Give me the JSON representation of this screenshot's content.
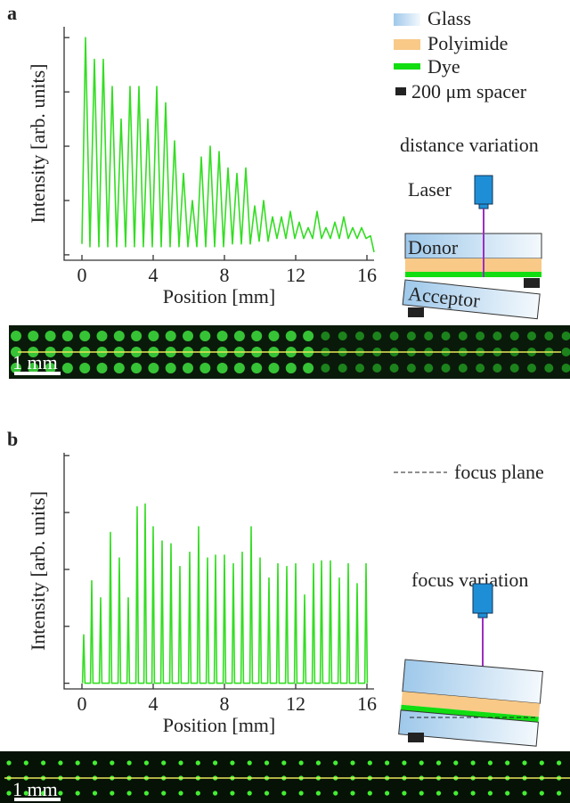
{
  "chart_data": [
    {
      "type": "line",
      "panel": "a",
      "xlabel": "Position [mm]",
      "ylabel": "Intensity [arb. units]",
      "color": "#33dd22",
      "x": [
        0,
        0.2,
        0.45,
        0.7,
        0.95,
        1.2,
        1.45,
        1.7,
        1.95,
        2.2,
        2.45,
        2.7,
        2.95,
        3.2,
        3.45,
        3.7,
        3.95,
        4.2,
        4.45,
        4.7,
        4.95,
        5.2,
        5.45,
        5.7,
        5.95,
        6.2,
        6.45,
        6.7,
        6.95,
        7.2,
        7.45,
        7.7,
        7.95,
        8.2,
        8.45,
        8.7,
        8.95,
        9.2,
        9.45,
        9.7,
        9.95,
        10.2,
        10.45,
        10.7,
        10.95,
        11.2,
        11.45,
        11.7,
        11.95,
        12.2,
        12.45,
        12.7,
        12.95,
        13.2,
        13.45,
        13.7,
        13.95,
        14.2,
        14.45,
        14.7,
        14.95,
        15.2,
        15.45,
        15.7,
        15.95,
        16.2,
        16.4
      ],
      "values": [
        0.2,
        4.0,
        0.15,
        3.6,
        0.15,
        3.6,
        0.15,
        3.1,
        0.15,
        2.5,
        0.15,
        3.1,
        0.15,
        3.1,
        0.15,
        2.5,
        0.15,
        3.1,
        0.15,
        2.8,
        0.15,
        2.1,
        0.15,
        1.5,
        0.15,
        1.0,
        0.15,
        1.8,
        0.15,
        2.0,
        0.15,
        1.9,
        0.15,
        1.6,
        0.2,
        1.5,
        0.2,
        1.6,
        0.2,
        0.9,
        0.25,
        1.0,
        0.25,
        0.7,
        0.3,
        0.7,
        0.3,
        0.8,
        0.3,
        0.6,
        0.3,
        0.5,
        0.3,
        0.8,
        0.3,
        0.5,
        0.3,
        0.6,
        0.3,
        0.7,
        0.3,
        0.5,
        0.3,
        0.5,
        0.3,
        0.35,
        0.05
      ],
      "xlim": [
        -1,
        16.4
      ],
      "xticks": [
        0,
        4,
        8,
        12,
        16
      ],
      "ylim": [
        -0.1,
        4.2
      ],
      "yticks": [
        0,
        1,
        2,
        3,
        4
      ],
      "ytick_labels": false
    },
    {
      "type": "line",
      "panel": "b",
      "xlabel": "Position [mm]",
      "ylabel": "Intensity [arb. units]",
      "color": "#33dd22",
      "x": [
        0.03,
        0.1,
        0.17,
        0.48,
        0.55,
        0.62,
        0.98,
        1.05,
        1.12,
        1.53,
        1.6,
        1.67,
        2.03,
        2.1,
        2.17,
        2.53,
        2.6,
        2.67,
        3.03,
        3.1,
        3.17,
        3.48,
        3.55,
        3.62,
        3.93,
        4.0,
        4.07,
        4.43,
        4.5,
        4.57,
        4.93,
        5.0,
        5.07,
        5.43,
        5.5,
        5.57,
        5.98,
        6.05,
        6.12,
        6.48,
        6.55,
        6.62,
        6.98,
        7.05,
        7.12,
        7.43,
        7.5,
        7.57,
        7.93,
        8.0,
        8.07,
        8.43,
        8.5,
        8.57,
        8.93,
        9.0,
        9.07,
        9.43,
        9.5,
        9.57,
        9.93,
        10.0,
        10.07,
        10.43,
        10.5,
        10.57,
        10.93,
        11.0,
        11.07,
        11.43,
        11.5,
        11.57,
        11.93,
        12.0,
        12.07,
        12.43,
        12.5,
        12.57,
        12.93,
        13.0,
        13.07,
        13.38,
        13.45,
        13.52,
        13.88,
        13.95,
        14.02,
        14.38,
        14.45,
        14.52,
        14.88,
        14.95,
        15.02,
        15.38,
        15.45,
        15.52,
        15.88,
        15.95,
        16.02
      ],
      "values": [
        0,
        0.85,
        0,
        0,
        1.8,
        0,
        0,
        1.5,
        0,
        0,
        2.65,
        0,
        0,
        2.2,
        0,
        0,
        1.5,
        0,
        0,
        3.1,
        0,
        0,
        3.15,
        0,
        0,
        2.75,
        0,
        0,
        2.5,
        0,
        0,
        2.45,
        0,
        0,
        2.05,
        0,
        0,
        2.3,
        0,
        0,
        2.75,
        0,
        0,
        2.2,
        0,
        0,
        2.25,
        0,
        0,
        2.25,
        0,
        0,
        2.1,
        0,
        0,
        2.3,
        0,
        0,
        2.75,
        0,
        0,
        2.2,
        0,
        0,
        1.85,
        0,
        0,
        2.1,
        0,
        0,
        2.05,
        0,
        0,
        2.1,
        0,
        0,
        1.55,
        0,
        0,
        2.1,
        0,
        0,
        2.15,
        0,
        0,
        2.15,
        0,
        0,
        1.85,
        0,
        0,
        2.1,
        0,
        0,
        1.75,
        0,
        0,
        2.1,
        0
      ],
      "xlim": [
        -1,
        16.4
      ],
      "xticks": [
        0,
        4,
        8,
        12,
        16
      ],
      "ylim": [
        -0.1,
        4.05
      ],
      "yticks": [
        0,
        1,
        2,
        3,
        4
      ],
      "ytick_labels": false
    }
  ],
  "legend": {
    "glass": "Glass",
    "polyimide": "Polyimide",
    "dye": "Dye",
    "spacer": "200 μm spacer"
  },
  "diagram_a": {
    "title": "distance variation",
    "laser": "Laser",
    "donor": "Donor",
    "acceptor": "Acceptor",
    "scale": "1 mm"
  },
  "diagram_b": {
    "focus_plane": "focus plane",
    "title": "focus variation",
    "scale": "1 mm"
  }
}
